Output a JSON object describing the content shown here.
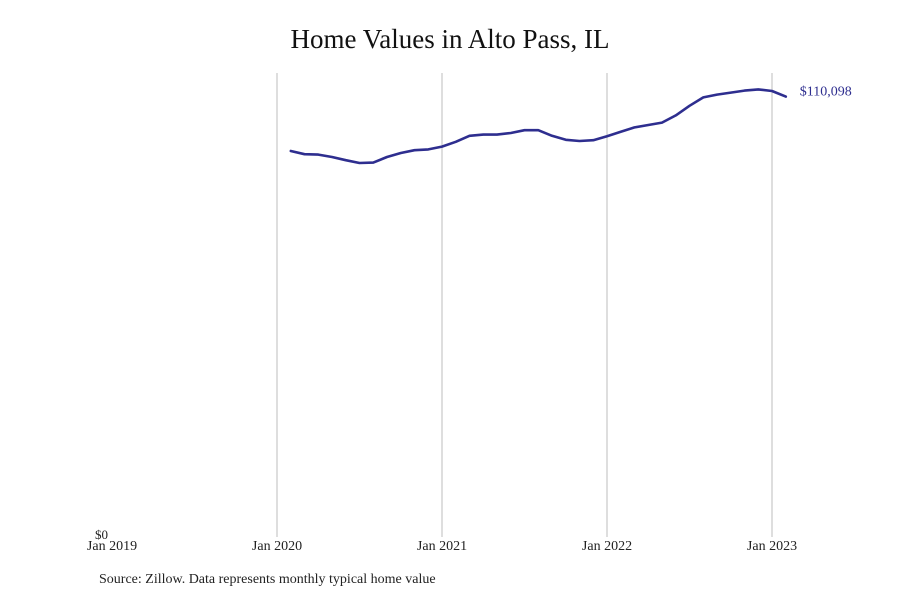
{
  "chart_data": {
    "type": "line",
    "title": "Home Values in Alto Pass, IL",
    "xlabel": "",
    "ylabel": "",
    "ylim": [
      0,
      116000
    ],
    "xlim": [
      "2019-01",
      "2023-03"
    ],
    "y_ticks": [
      {
        "value": 0,
        "label": "$0"
      }
    ],
    "x_ticks": [
      {
        "value": "2019-01",
        "label": "Jan 2019"
      },
      {
        "value": "2020-01",
        "label": "Jan 2020"
      },
      {
        "value": "2021-01",
        "label": "Jan 2021"
      },
      {
        "value": "2022-01",
        "label": "Jan 2022"
      },
      {
        "value": "2023-01",
        "label": "Jan 2023"
      }
    ],
    "grid": {
      "vertical": true,
      "horizontal": false
    },
    "line_color": "#2e2e8f",
    "end_label": "$110,098",
    "series": [
      {
        "x": [
          "2020-02",
          "2020-03",
          "2020-04",
          "2020-05",
          "2020-06",
          "2020-07",
          "2020-08",
          "2020-09",
          "2020-10",
          "2020-11",
          "2020-12",
          "2021-01",
          "2021-02",
          "2021-03",
          "2021-04",
          "2021-05",
          "2021-06",
          "2021-07",
          "2021-08",
          "2021-09",
          "2021-10",
          "2021-11",
          "2021-12",
          "2022-01",
          "2022-02",
          "2022-03",
          "2022-04",
          "2022-05",
          "2022-06",
          "2022-07",
          "2022-08",
          "2022-09",
          "2022-10",
          "2022-11",
          "2022-12",
          "2023-01",
          "2023-02"
        ],
        "values": [
          96500,
          95700,
          95600,
          95000,
          94200,
          93500,
          93600,
          95000,
          96000,
          96700,
          96900,
          97600,
          98800,
          100300,
          100600,
          100600,
          101000,
          101700,
          101700,
          100300,
          99300,
          99000,
          99200,
          100200,
          101300,
          102400,
          103000,
          103600,
          105400,
          107800,
          109900,
          110600,
          111100,
          111600,
          111900,
          111500,
          110098
        ]
      }
    ]
  },
  "source_note": "Source: Zillow. Data represents monthly typical home value"
}
